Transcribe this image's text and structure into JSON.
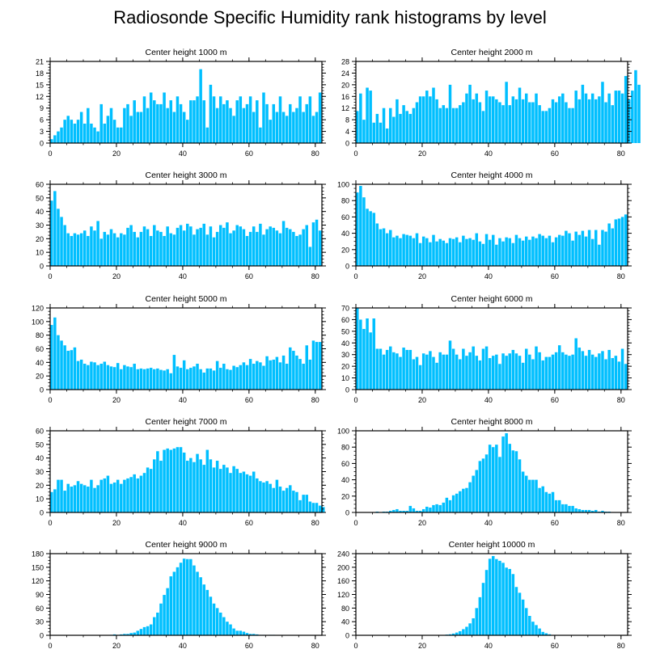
{
  "title": "Radiosonde Specific Humidity rank histograms by level",
  "bar_color": "#00BFFF",
  "chart_data": [
    {
      "type": "bar",
      "title": "Center height 1000 m",
      "xlim": [
        0,
        82
      ],
      "xticks": [
        0,
        20,
        40,
        60,
        80
      ],
      "ylim": [
        0,
        21
      ],
      "yticks": [
        0,
        3,
        6,
        9,
        12,
        15,
        18,
        21
      ],
      "values": [
        1,
        2,
        3,
        4,
        6,
        7,
        6,
        5,
        6,
        8,
        5,
        9,
        5,
        4,
        3,
        10,
        5,
        7,
        9,
        6,
        4,
        4,
        9,
        10,
        7,
        11,
        8,
        8,
        12,
        9,
        13,
        11,
        10,
        10,
        13,
        9,
        11,
        8,
        12,
        10,
        8,
        6,
        11,
        11,
        12,
        19,
        11,
        4,
        15,
        12,
        9,
        12,
        10,
        11,
        9,
        7,
        11,
        12,
        9,
        10,
        12,
        8,
        11,
        4,
        13,
        10,
        6,
        10,
        8,
        12,
        8,
        7,
        10,
        8,
        9,
        12,
        8,
        10,
        12,
        7,
        8,
        13
      ]
    },
    {
      "type": "bar",
      "title": "Center height 2000 m",
      "xlim": [
        0,
        82
      ],
      "xticks": [
        0,
        20,
        40,
        60,
        80
      ],
      "ylim": [
        0,
        28
      ],
      "yticks": [
        0,
        4,
        8,
        12,
        16,
        20,
        24,
        28
      ],
      "values": [
        11,
        17,
        8,
        19,
        18,
        7,
        10,
        7,
        12,
        5,
        12,
        9,
        15,
        10,
        13,
        11,
        10,
        12,
        14,
        16,
        16,
        18,
        16,
        19,
        15,
        12,
        13,
        12,
        20,
        12,
        12,
        13,
        14,
        17,
        20,
        15,
        17,
        14,
        11,
        18,
        16,
        16,
        15,
        14,
        13,
        21,
        13,
        16,
        15,
        19,
        15,
        17,
        14,
        14,
        17,
        13,
        11,
        11,
        12,
        15,
        14,
        16,
        17,
        14,
        12,
        12,
        18,
        15,
        20,
        17,
        15,
        17,
        15,
        16,
        21,
        14,
        17,
        13,
        18,
        18,
        17,
        23,
        15,
        18,
        25,
        20
      ]
    },
    {
      "type": "bar",
      "title": "Center height 3000 m",
      "xlim": [
        0,
        82
      ],
      "xticks": [
        0,
        20,
        40,
        60,
        80
      ],
      "ylim": [
        0,
        60
      ],
      "yticks": [
        0,
        10,
        20,
        30,
        40,
        50,
        60
      ],
      "values": [
        48,
        55,
        42,
        36,
        30,
        24,
        22,
        24,
        23,
        24,
        26,
        22,
        29,
        26,
        33,
        20,
        25,
        23,
        27,
        24,
        21,
        24,
        23,
        28,
        30,
        25,
        21,
        25,
        29,
        27,
        22,
        30,
        26,
        25,
        22,
        29,
        24,
        23,
        28,
        30,
        26,
        31,
        29,
        23,
        27,
        28,
        31,
        23,
        29,
        21,
        25,
        30,
        28,
        32,
        24,
        26,
        30,
        29,
        27,
        22,
        25,
        29,
        25,
        31,
        23,
        27,
        29,
        28,
        26,
        24,
        33,
        28,
        27,
        25,
        22,
        23,
        27,
        30,
        14,
        32,
        34,
        26
      ]
    },
    {
      "type": "bar",
      "title": "Center height 4000 m",
      "xlim": [
        0,
        82
      ],
      "xticks": [
        0,
        20,
        40,
        60,
        80
      ],
      "ylim": [
        0,
        100
      ],
      "yticks": [
        0,
        20,
        40,
        60,
        80,
        100
      ],
      "values": [
        90,
        98,
        84,
        70,
        67,
        65,
        52,
        45,
        46,
        40,
        44,
        35,
        37,
        34,
        39,
        38,
        37,
        34,
        40,
        28,
        36,
        34,
        29,
        38,
        30,
        33,
        31,
        28,
        34,
        33,
        35,
        29,
        37,
        33,
        34,
        32,
        40,
        30,
        27,
        39,
        32,
        38,
        26,
        34,
        30,
        35,
        34,
        28,
        38,
        34,
        31,
        36,
        32,
        36,
        34,
        39,
        37,
        34,
        37,
        29,
        35,
        38,
        37,
        43,
        40,
        31,
        42,
        38,
        43,
        36,
        44,
        33,
        44,
        26,
        44,
        42,
        52,
        46,
        57,
        58,
        60,
        63
      ]
    },
    {
      "type": "bar",
      "title": "Center height 5000 m",
      "xlim": [
        0,
        82
      ],
      "xticks": [
        0,
        20,
        40,
        60,
        80
      ],
      "ylim": [
        0,
        120
      ],
      "yticks": [
        0,
        20,
        40,
        60,
        80,
        100,
        120
      ],
      "values": [
        95,
        106,
        80,
        72,
        65,
        57,
        58,
        62,
        42,
        44,
        38,
        36,
        41,
        40,
        36,
        38,
        41,
        36,
        34,
        33,
        39,
        30,
        36,
        34,
        33,
        38,
        30,
        31,
        30,
        31,
        32,
        30,
        31,
        29,
        28,
        30,
        24,
        51,
        34,
        32,
        43,
        30,
        32,
        34,
        38,
        30,
        25,
        31,
        31,
        28,
        42,
        32,
        38,
        30,
        29,
        35,
        33,
        36,
        40,
        36,
        45,
        38,
        42,
        40,
        35,
        49,
        43,
        44,
        48,
        40,
        50,
        38,
        62,
        57,
        50,
        45,
        38,
        65,
        44,
        72,
        70,
        70
      ]
    },
    {
      "type": "bar",
      "title": "Center height 6000 m",
      "xlim": [
        0,
        82
      ],
      "xticks": [
        0,
        20,
        40,
        60,
        80
      ],
      "ylim": [
        0,
        70
      ],
      "yticks": [
        0,
        10,
        20,
        30,
        40,
        50,
        60,
        70
      ],
      "values": [
        70,
        60,
        52,
        61,
        49,
        61,
        35,
        35,
        30,
        34,
        37,
        32,
        31,
        28,
        36,
        34,
        34,
        26,
        28,
        21,
        31,
        30,
        33,
        28,
        23,
        32,
        30,
        30,
        42,
        35,
        30,
        26,
        35,
        29,
        32,
        37,
        29,
        25,
        35,
        37,
        27,
        29,
        30,
        22,
        31,
        29,
        31,
        34,
        31,
        29,
        23,
        35,
        30,
        26,
        37,
        32,
        25,
        28,
        28,
        30,
        32,
        38,
        32,
        30,
        29,
        30,
        44,
        36,
        33,
        29,
        34,
        30,
        28,
        31,
        33,
        26,
        34,
        27,
        29,
        24,
        35,
        22
      ]
    },
    {
      "type": "bar",
      "title": "Center height 7000 m",
      "xlim": [
        0,
        82
      ],
      "xticks": [
        0,
        20,
        40,
        60,
        80
      ],
      "ylim": [
        0,
        60
      ],
      "yticks": [
        0,
        10,
        20,
        30,
        40,
        50,
        60
      ],
      "values": [
        15,
        17,
        24,
        24,
        16,
        21,
        19,
        20,
        23,
        21,
        20,
        19,
        24,
        18,
        20,
        24,
        25,
        27,
        21,
        22,
        24,
        21,
        24,
        25,
        26,
        28,
        25,
        27,
        29,
        33,
        32,
        39,
        45,
        38,
        46,
        47,
        46,
        47,
        48,
        48,
        44,
        38,
        40,
        37,
        43,
        39,
        35,
        46,
        39,
        33,
        38,
        32,
        35,
        33,
        29,
        34,
        32,
        29,
        30,
        28,
        27,
        30,
        25,
        23,
        22,
        23,
        21,
        18,
        24,
        19,
        16,
        18,
        20,
        16,
        15,
        9,
        13,
        13,
        8,
        7,
        7,
        5,
        4
      ]
    },
    {
      "type": "bar",
      "title": "Center height 8000 m",
      "xlim": [
        0,
        82
      ],
      "xticks": [
        0,
        20,
        40,
        60,
        80
      ],
      "ylim": [
        0,
        100
      ],
      "yticks": [
        0,
        20,
        40,
        60,
        80,
        100
      ],
      "values": [
        0,
        0,
        0,
        0,
        0,
        0,
        1,
        0,
        1,
        1,
        2,
        3,
        4,
        2,
        2,
        2,
        8,
        5,
        2,
        2,
        4,
        7,
        6,
        9,
        10,
        9,
        12,
        18,
        15,
        21,
        23,
        26,
        29,
        30,
        37,
        45,
        52,
        63,
        66,
        71,
        83,
        80,
        83,
        68,
        93,
        97,
        84,
        76,
        75,
        65,
        50,
        45,
        40,
        40,
        40,
        30,
        32,
        25,
        23,
        25,
        15,
        15,
        10,
        10,
        8,
        8,
        5,
        4,
        3,
        3,
        3,
        2,
        3,
        1,
        2,
        1,
        1,
        0,
        0,
        0,
        0,
        0
      ]
    },
    {
      "type": "bar",
      "title": "Center height 9000 m",
      "xlim": [
        0,
        82
      ],
      "xticks": [
        0,
        20,
        40,
        60,
        80
      ],
      "ylim": [
        0,
        180
      ],
      "yticks": [
        0,
        30,
        60,
        90,
        120,
        150,
        180
      ],
      "values": [
        0,
        0,
        0,
        0,
        0,
        0,
        0,
        0,
        0,
        0,
        0,
        0,
        0,
        0,
        0,
        0,
        0,
        0,
        1,
        2,
        1,
        2,
        3,
        3,
        5,
        6,
        10,
        14,
        18,
        20,
        24,
        40,
        50,
        70,
        89,
        104,
        130,
        140,
        150,
        160,
        169,
        168,
        168,
        154,
        140,
        128,
        112,
        100,
        85,
        70,
        60,
        50,
        40,
        30,
        24,
        15,
        10,
        10,
        8,
        5,
        3,
        3,
        2,
        1,
        1,
        0,
        1,
        1,
        0,
        0,
        0,
        0,
        0,
        0,
        0,
        0,
        0,
        0,
        0,
        0,
        0,
        0
      ]
    },
    {
      "type": "bar",
      "title": "Center height 10000 m",
      "xlim": [
        0,
        82
      ],
      "xticks": [
        0,
        20,
        40,
        60,
        80
      ],
      "ylim": [
        0,
        240
      ],
      "yticks": [
        0,
        40,
        80,
        120,
        160,
        200,
        240
      ],
      "values": [
        0,
        0,
        0,
        0,
        0,
        0,
        0,
        0,
        0,
        0,
        0,
        0,
        0,
        0,
        0,
        0,
        0,
        0,
        0,
        0,
        0,
        0,
        0,
        0,
        0,
        0,
        1,
        2,
        3,
        5,
        8,
        12,
        18,
        25,
        35,
        50,
        80,
        112,
        154,
        192,
        225,
        233,
        224,
        219,
        213,
        199,
        195,
        180,
        142,
        125,
        105,
        80,
        57,
        40,
        30,
        20,
        10,
        6,
        3,
        1,
        1,
        0,
        0,
        0,
        0,
        0,
        0,
        0,
        0,
        0,
        0,
        0,
        0,
        0,
        0,
        0,
        0,
        0,
        0,
        0,
        0,
        0
      ]
    }
  ]
}
